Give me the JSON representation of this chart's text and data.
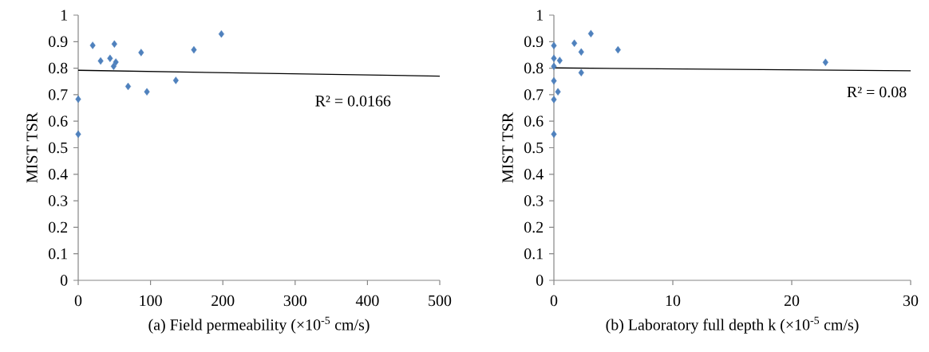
{
  "chart_data": [
    {
      "type": "scatter",
      "xlabel": "(a) Field permeability (×10$^{-5}$ cm/s)",
      "ylabel": "MIST TSR",
      "xlim": [
        0,
        500
      ],
      "ylim": [
        0,
        1
      ],
      "xticks": [
        0,
        100,
        200,
        300,
        400,
        500
      ],
      "yticks": [
        0,
        0.1,
        0.2,
        0.3,
        0.4,
        0.5,
        0.6,
        0.7,
        0.8,
        0.9,
        1
      ],
      "annotations": [
        "R² = 0.0166"
      ],
      "series": [
        {
          "marker": "diamond",
          "color": "#4f81bd",
          "x": [
            0,
            0,
            20,
            31,
            44,
            50,
            52,
            49,
            69,
            87,
            95,
            135,
            160,
            198
          ],
          "values": [
            0.683,
            0.551,
            0.886,
            0.827,
            0.837,
            0.891,
            0.823,
            0.807,
            0.731,
            0.859,
            0.711,
            0.754,
            0.869,
            0.929
          ]
        },
        {
          "type": "line",
          "marker": "none",
          "color": "#000000",
          "x": [
            0,
            500
          ],
          "values": [
            0.792,
            0.77
          ]
        }
      ]
    },
    {
      "type": "scatter",
      "xlabel": "(b) Laboratory full depth k (×10$^{-5}$ cm/s)",
      "ylabel": "MIST TSR",
      "xlim": [
        0,
        30
      ],
      "ylim": [
        0,
        1
      ],
      "xticks": [
        0,
        10,
        20,
        30
      ],
      "yticks": [
        0,
        0.1,
        0.2,
        0.3,
        0.4,
        0.5,
        0.6,
        0.7,
        0.8,
        0.9,
        1
      ],
      "annotations": [
        "R² = 0.08"
      ],
      "series": [
        {
          "marker": "diamond",
          "color": "#4f81bd",
          "x": [
            0,
            0,
            0.49,
            0,
            0,
            0.34,
            0,
            0,
            1.72,
            3.11,
            2.3,
            2.3,
            5.39,
            22.84
          ],
          "values": [
            0.885,
            0.837,
            0.829,
            0.807,
            0.752,
            0.711,
            0.682,
            0.551,
            0.894,
            0.93,
            0.861,
            0.783,
            0.869,
            0.822
          ]
        },
        {
          "type": "line",
          "marker": "none",
          "color": "#000000",
          "x": [
            0,
            30
          ],
          "values": [
            0.801,
            0.79
          ]
        }
      ]
    }
  ]
}
